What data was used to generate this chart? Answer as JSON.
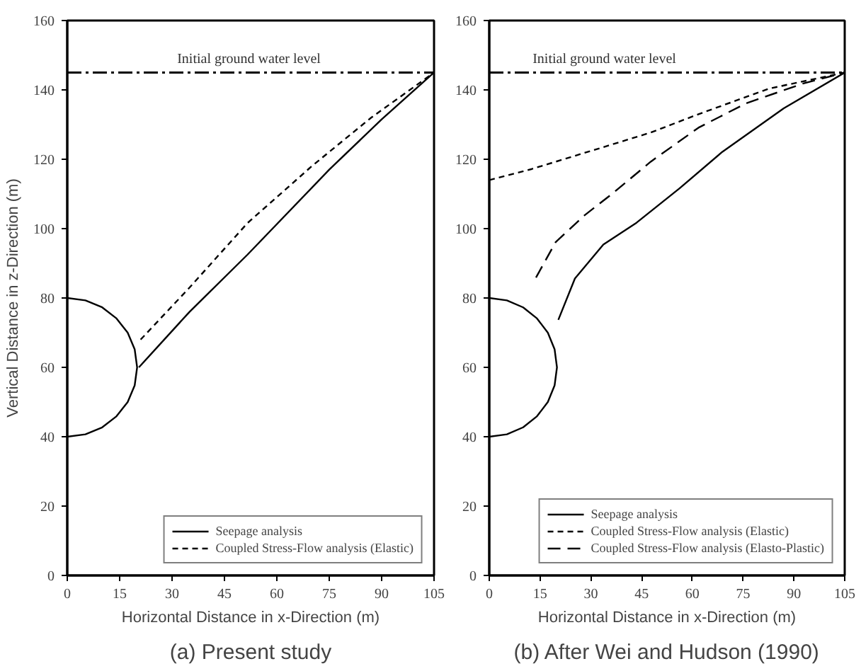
{
  "chart_data": [
    {
      "type": "line",
      "title": "(a) Present study",
      "xlabel": "Horizontal Distance in x-Direction (m)",
      "ylabel": "Vertical Distance in z-Direction (m)",
      "xlim": [
        0,
        105
      ],
      "ylim": [
        0,
        160
      ],
      "xticks": [
        0,
        15,
        30,
        45,
        60,
        75,
        90,
        105
      ],
      "yticks": [
        0,
        20,
        40,
        60,
        80,
        100,
        120,
        140,
        160
      ],
      "grid": false,
      "legend": "bottom right",
      "marker": "none",
      "series": [
        {
          "name": "Seepage analysis",
          "color": "#000000",
          "line_style": "solid",
          "x": [
            20.5,
            35,
            51.6,
            75,
            90,
            105
          ],
          "values": [
            60,
            76,
            92.5,
            117,
            131.5,
            145
          ]
        },
        {
          "name": "Coupled Stress-Flow analysis (Elastic)",
          "color": "#000000",
          "line_style": "dashed",
          "x": [
            21,
            35,
            51.6,
            70,
            87,
            105
          ],
          "values": [
            68,
            83,
            101.6,
            118,
            132,
            145
          ]
        },
        {
          "color": "#000000",
          "line_style": "solid",
          "x": [
            0,
            5.2,
            10,
            14.1,
            17.3,
            19.3,
            20,
            19.3,
            17.3,
            14.1,
            10,
            5.2,
            0
          ],
          "values": [
            80,
            79.3,
            77.3,
            74.1,
            70,
            65.2,
            60,
            54.8,
            50,
            45.9,
            42.7,
            40.7,
            40
          ]
        }
      ],
      "ref_lines": [
        {
          "axis": "y",
          "value": 145,
          "line_style": "dashdot",
          "color": "#000000"
        }
      ],
      "annotations": [
        {
          "text": "Initial ground water level",
          "x": 52,
          "y": 145
        }
      ]
    },
    {
      "type": "line",
      "title": "(b) After Wei and Hudson (1990)",
      "xlabel": "Horizontal Distance in x-Direction (m)",
      "xlim": [
        0,
        105
      ],
      "ylim": [
        0,
        160
      ],
      "xticks": [
        0,
        15,
        30,
        45,
        60,
        75,
        90,
        105
      ],
      "yticks": [
        0,
        20,
        40,
        60,
        80,
        100,
        120,
        140,
        160
      ],
      "grid": false,
      "legend": "bottom right",
      "marker": "none",
      "series": [
        {
          "name": "Seepage analysis",
          "color": "#000000",
          "line_style": "solid",
          "x": [
            20.4,
            25.3,
            33.7,
            43.5,
            56.2,
            68.8,
            87,
            105
          ],
          "values": [
            73.7,
            85.6,
            95.4,
            101.7,
            111.6,
            122.1,
            134.7,
            145
          ]
        },
        {
          "name": "Coupled Stress-Flow analysis (Elastic)",
          "color": "#000000",
          "line_style": "dashed",
          "x": [
            0,
            12.6,
            33.7,
            47.7,
            61.8,
            82.8,
            105
          ],
          "values": [
            114,
            117.2,
            123.5,
            127.7,
            133,
            140.4,
            145
          ]
        },
        {
          "name": "Coupled Stress-Flow analysis (Elasto-Plastic)",
          "color": "#000000",
          "line_style": "longdash",
          "x": [
            13.8,
            19.6,
            28.1,
            36.5,
            47.7,
            61.8,
            75.8,
            92.6,
            105
          ],
          "values": [
            85.9,
            96.1,
            103.8,
            110.2,
            119.3,
            129.1,
            136.1,
            141.8,
            145
          ]
        },
        {
          "color": "#000000",
          "line_style": "solid",
          "x": [
            0,
            5.2,
            10,
            14.1,
            17.3,
            19.3,
            20,
            19.3,
            17.3,
            14.1,
            10,
            5.2,
            0
          ],
          "values": [
            80,
            79.3,
            77.3,
            74.1,
            70,
            65.2,
            60,
            54.8,
            50,
            45.9,
            42.7,
            40.7,
            40
          ]
        }
      ],
      "ref_lines": [
        {
          "axis": "y",
          "value": 145,
          "line_style": "dashdot",
          "color": "#000000"
        }
      ],
      "annotations": [
        {
          "text": "Initial ground water level",
          "x": 34,
          "y": 145
        }
      ]
    }
  ]
}
